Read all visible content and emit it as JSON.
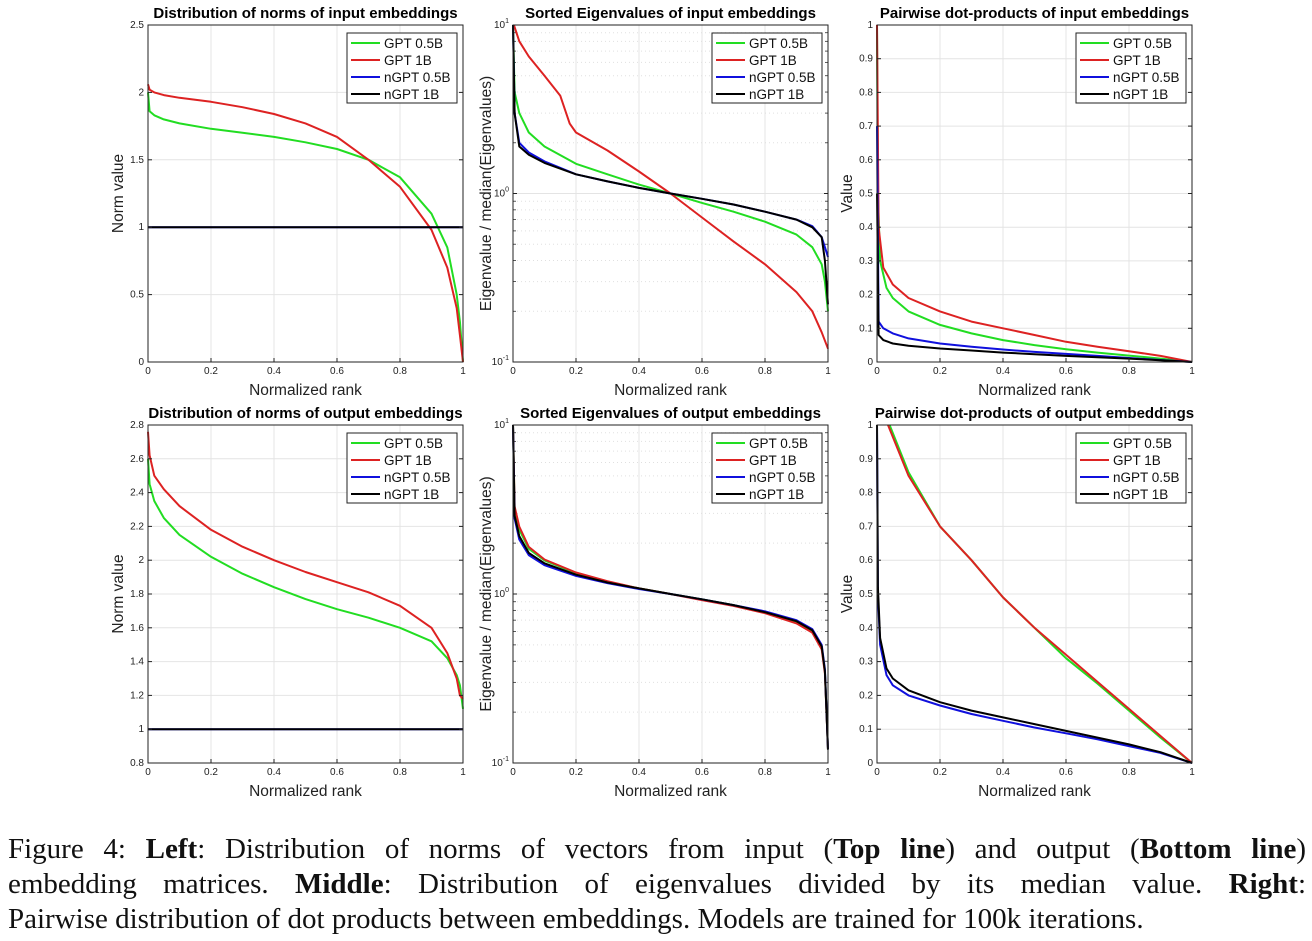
{
  "colors": {
    "GPT 0.5B": "#22dd22",
    "GPT 1B": "#dd2222",
    "nGPT 0.5B": "#1010dd",
    "nGPT 1B": "#000000",
    "grid": "#e4e4e4"
  },
  "chart_data": [
    {
      "type": "line",
      "title": "Distribution of norms of input embeddings",
      "xlabel": "Normalized rank",
      "ylabel": "Norm value",
      "xlim": [
        0,
        1
      ],
      "ylim": [
        0,
        2.5
      ],
      "yscale": "linear",
      "grid": true,
      "legend": "top-right",
      "xticks": [
        0,
        0.2,
        0.4,
        0.6,
        0.8,
        1
      ],
      "xticklabels": [
        "0",
        "0.2",
        "0.4",
        "0.6",
        "0.8",
        "1"
      ],
      "yticks": [
        0,
        0.5,
        1,
        1.5,
        2,
        2.5
      ],
      "yticklabels": [
        "0",
        "0.5",
        "1",
        "1.5",
        "2",
        "2.5"
      ],
      "series": [
        {
          "name": "GPT 0.5B",
          "x": [
            0,
            0.005,
            0.02,
            0.05,
            0.1,
            0.2,
            0.3,
            0.4,
            0.5,
            0.6,
            0.7,
            0.8,
            0.9,
            0.95,
            0.98,
            0.99,
            1
          ],
          "y": [
            2.0,
            1.86,
            1.83,
            1.8,
            1.77,
            1.73,
            1.7,
            1.67,
            1.63,
            1.58,
            1.5,
            1.37,
            1.1,
            0.85,
            0.5,
            0.3,
            0
          ]
        },
        {
          "name": "GPT 1B",
          "x": [
            0,
            0.005,
            0.02,
            0.05,
            0.1,
            0.2,
            0.3,
            0.4,
            0.5,
            0.6,
            0.7,
            0.8,
            0.9,
            0.95,
            0.98,
            0.99,
            1
          ],
          "y": [
            2.06,
            2.02,
            2.0,
            1.98,
            1.96,
            1.93,
            1.89,
            1.84,
            1.77,
            1.67,
            1.5,
            1.3,
            0.98,
            0.7,
            0.4,
            0.2,
            0
          ]
        },
        {
          "name": "nGPT 0.5B",
          "x": [
            0,
            1
          ],
          "y": [
            1,
            1
          ]
        },
        {
          "name": "nGPT 1B",
          "x": [
            0,
            1
          ],
          "y": [
            1,
            1
          ]
        }
      ]
    },
    {
      "type": "line",
      "title": "Sorted Eigenvalues of input embeddings",
      "xlabel": "Normalized rank",
      "ylabel": "Eigenvalue / median(Eigenvalues)",
      "xlim": [
        0,
        1
      ],
      "ylim": [
        0.1,
        10
      ],
      "yscale": "log",
      "grid": true,
      "legend": "top-right",
      "xticks": [
        0,
        0.2,
        0.4,
        0.6,
        0.8,
        1
      ],
      "xticklabels": [
        "0",
        "0.2",
        "0.4",
        "0.6",
        "0.8",
        "1"
      ],
      "yticks": [
        0.1,
        1,
        10
      ],
      "yticklabels": [
        "10^-1",
        "10^0",
        "10^1"
      ],
      "series": [
        {
          "name": "GPT 0.5B",
          "x": [
            0,
            0.005,
            0.02,
            0.05,
            0.1,
            0.2,
            0.3,
            0.4,
            0.5,
            0.6,
            0.7,
            0.8,
            0.9,
            0.95,
            0.98,
            0.99,
            1
          ],
          "y": [
            10,
            4,
            3,
            2.3,
            1.9,
            1.5,
            1.3,
            1.13,
            1.0,
            0.88,
            0.78,
            0.68,
            0.57,
            0.48,
            0.38,
            0.3,
            0.2
          ]
        },
        {
          "name": "GPT 1B",
          "x": [
            0.003,
            0.02,
            0.05,
            0.1,
            0.15,
            0.18,
            0.2,
            0.3,
            0.4,
            0.5,
            0.6,
            0.7,
            0.8,
            0.9,
            0.95,
            0.98,
            1
          ],
          "y": [
            10,
            8,
            6.5,
            5,
            3.8,
            2.6,
            2.3,
            1.8,
            1.35,
            1.0,
            0.72,
            0.52,
            0.38,
            0.26,
            0.2,
            0.15,
            0.12
          ]
        },
        {
          "name": "nGPT 0.5B",
          "x": [
            0,
            0.005,
            0.02,
            0.05,
            0.1,
            0.2,
            0.3,
            0.4,
            0.5,
            0.6,
            0.7,
            0.8,
            0.9,
            0.95,
            0.98,
            0.99,
            1
          ],
          "y": [
            10,
            3,
            2,
            1.75,
            1.55,
            1.3,
            1.18,
            1.08,
            1.0,
            0.93,
            0.86,
            0.78,
            0.7,
            0.64,
            0.55,
            0.48,
            0.42
          ]
        },
        {
          "name": "nGPT 1B",
          "x": [
            0,
            0.005,
            0.02,
            0.05,
            0.1,
            0.2,
            0.3,
            0.4,
            0.5,
            0.6,
            0.7,
            0.8,
            0.9,
            0.95,
            0.98,
            0.99,
            1
          ],
          "y": [
            10,
            3,
            1.9,
            1.7,
            1.52,
            1.3,
            1.18,
            1.08,
            1.0,
            0.93,
            0.86,
            0.78,
            0.7,
            0.63,
            0.55,
            0.4,
            0.22
          ]
        }
      ]
    },
    {
      "type": "line",
      "title": "Pairwise dot-products of input embeddings",
      "xlabel": "Normalized rank",
      "ylabel": "Value",
      "xlim": [
        0,
        1
      ],
      "ylim": [
        0,
        1
      ],
      "yscale": "linear",
      "grid": true,
      "legend": "top-right",
      "xticks": [
        0,
        0.2,
        0.4,
        0.6,
        0.8,
        1
      ],
      "xticklabels": [
        "0",
        "0.2",
        "0.4",
        "0.6",
        "0.8",
        "1"
      ],
      "yticks": [
        0,
        0.1,
        0.2,
        0.3,
        0.4,
        0.5,
        0.6,
        0.7,
        0.8,
        0.9,
        1
      ],
      "yticklabels": [
        "0",
        "0.1",
        "0.2",
        "0.3",
        "0.4",
        "0.5",
        "0.6",
        "0.7",
        "0.8",
        "0.9",
        "1"
      ],
      "series": [
        {
          "name": "GPT 0.5B",
          "x": [
            0,
            0.003,
            0.01,
            0.03,
            0.05,
            0.1,
            0.2,
            0.3,
            0.4,
            0.5,
            0.6,
            0.7,
            0.8,
            0.9,
            1
          ],
          "y": [
            1,
            0.5,
            0.3,
            0.22,
            0.19,
            0.15,
            0.11,
            0.085,
            0.065,
            0.05,
            0.038,
            0.028,
            0.019,
            0.01,
            0
          ]
        },
        {
          "name": "GPT 1B",
          "x": [
            0,
            0.005,
            0.02,
            0.05,
            0.1,
            0.2,
            0.3,
            0.4,
            0.5,
            0.6,
            0.7,
            0.8,
            0.9,
            1
          ],
          "y": [
            1,
            0.4,
            0.28,
            0.23,
            0.19,
            0.15,
            0.12,
            0.1,
            0.08,
            0.06,
            0.045,
            0.032,
            0.018,
            0
          ]
        },
        {
          "name": "nGPT 0.5B",
          "x": [
            0,
            0.005,
            0.02,
            0.05,
            0.1,
            0.2,
            0.3,
            0.4,
            0.5,
            0.6,
            0.7,
            0.8,
            0.9,
            1
          ],
          "y": [
            0.7,
            0.12,
            0.1,
            0.085,
            0.07,
            0.055,
            0.045,
            0.037,
            0.03,
            0.024,
            0.018,
            0.012,
            0.006,
            0
          ]
        },
        {
          "name": "nGPT 1B",
          "x": [
            0,
            0.005,
            0.02,
            0.05,
            0.1,
            0.2,
            0.3,
            0.4,
            0.5,
            0.6,
            0.7,
            0.8,
            0.9,
            1
          ],
          "y": [
            0.5,
            0.08,
            0.065,
            0.055,
            0.048,
            0.04,
            0.034,
            0.028,
            0.023,
            0.018,
            0.014,
            0.01,
            0.005,
            0
          ]
        }
      ]
    },
    {
      "type": "line",
      "title": "Distribution of norms of output embeddings",
      "xlabel": "Normalized rank",
      "ylabel": "Norm value",
      "xlim": [
        0,
        1
      ],
      "ylim": [
        0.8,
        2.8
      ],
      "yscale": "linear",
      "grid": true,
      "legend": "top-right",
      "xticks": [
        0,
        0.2,
        0.4,
        0.6,
        0.8,
        1
      ],
      "xticklabels": [
        "0",
        "0.2",
        "0.4",
        "0.6",
        "0.8",
        "1"
      ],
      "yticks": [
        0.8,
        1,
        1.2,
        1.4,
        1.6,
        1.8,
        2,
        2.2,
        2.4,
        2.6,
        2.8
      ],
      "yticklabels": [
        "0.8",
        "1",
        "1.2",
        "1.4",
        "1.6",
        "1.8",
        "2",
        "2.2",
        "2.4",
        "2.6",
        "2.8"
      ],
      "series": [
        {
          "name": "GPT 0.5B",
          "x": [
            0,
            0.005,
            0.02,
            0.05,
            0.1,
            0.2,
            0.3,
            0.4,
            0.5,
            0.6,
            0.7,
            0.8,
            0.9,
            0.95,
            0.98,
            0.99,
            1
          ],
          "y": [
            2.6,
            2.45,
            2.35,
            2.25,
            2.15,
            2.02,
            1.92,
            1.84,
            1.77,
            1.71,
            1.66,
            1.6,
            1.52,
            1.42,
            1.32,
            1.26,
            1.12
          ]
        },
        {
          "name": "GPT 1B",
          "x": [
            0,
            0.005,
            0.02,
            0.05,
            0.1,
            0.2,
            0.3,
            0.4,
            0.5,
            0.6,
            0.7,
            0.8,
            0.9,
            0.95,
            0.98,
            0.99,
            1
          ],
          "y": [
            2.76,
            2.62,
            2.5,
            2.42,
            2.32,
            2.18,
            2.08,
            2.0,
            1.93,
            1.87,
            1.81,
            1.73,
            1.6,
            1.45,
            1.3,
            1.2,
            1.18
          ]
        },
        {
          "name": "nGPT 0.5B",
          "x": [
            0,
            1
          ],
          "y": [
            1,
            1
          ]
        },
        {
          "name": "nGPT 1B",
          "x": [
            0,
            1
          ],
          "y": [
            1,
            1
          ]
        }
      ]
    },
    {
      "type": "line",
      "title": "Sorted Eigenvalues of output embeddings",
      "xlabel": "Normalized rank",
      "ylabel": "Eigenvalue / median(Eigenvalues)",
      "xlim": [
        0,
        1
      ],
      "ylim": [
        0.1,
        10
      ],
      "yscale": "log",
      "grid": true,
      "legend": "top-right",
      "xticks": [
        0,
        0.2,
        0.4,
        0.6,
        0.8,
        1
      ],
      "xticklabels": [
        "0",
        "0.2",
        "0.4",
        "0.6",
        "0.8",
        "1"
      ],
      "yticks": [
        0.1,
        1,
        10
      ],
      "yticklabels": [
        "10^-1",
        "10^0",
        "10^1"
      ],
      "series": [
        {
          "name": "GPT 0.5B",
          "x": [
            0,
            0.005,
            0.02,
            0.05,
            0.1,
            0.2,
            0.3,
            0.4,
            0.5,
            0.6,
            0.7,
            0.8,
            0.9,
            0.95,
            0.98,
            0.99,
            1
          ],
          "y": [
            10,
            3.2,
            2.4,
            1.85,
            1.58,
            1.33,
            1.18,
            1.08,
            1.0,
            0.93,
            0.86,
            0.78,
            0.68,
            0.6,
            0.48,
            0.35,
            0.12
          ]
        },
        {
          "name": "GPT 1B",
          "x": [
            0,
            0.005,
            0.02,
            0.05,
            0.1,
            0.2,
            0.3,
            0.4,
            0.5,
            0.6,
            0.7,
            0.8,
            0.9,
            0.95,
            0.98,
            0.99,
            1
          ],
          "y": [
            10,
            3.3,
            2.5,
            1.9,
            1.6,
            1.34,
            1.19,
            1.08,
            1.0,
            0.92,
            0.85,
            0.77,
            0.67,
            0.59,
            0.47,
            0.34,
            0.12
          ]
        },
        {
          "name": "nGPT 0.5B",
          "x": [
            0,
            0.005,
            0.02,
            0.05,
            0.1,
            0.2,
            0.3,
            0.4,
            0.5,
            0.6,
            0.7,
            0.8,
            0.9,
            0.95,
            0.98,
            0.99,
            1
          ],
          "y": [
            10,
            2.8,
            2.1,
            1.7,
            1.48,
            1.28,
            1.16,
            1.07,
            1.0,
            0.93,
            0.86,
            0.79,
            0.7,
            0.62,
            0.5,
            0.36,
            0.12
          ]
        },
        {
          "name": "nGPT 1B",
          "x": [
            0,
            0.005,
            0.02,
            0.05,
            0.1,
            0.2,
            0.3,
            0.4,
            0.5,
            0.6,
            0.7,
            0.8,
            0.9,
            0.95,
            0.98,
            0.99,
            1
          ],
          "y": [
            10,
            2.9,
            2.2,
            1.75,
            1.52,
            1.3,
            1.17,
            1.08,
            1.0,
            0.93,
            0.86,
            0.78,
            0.69,
            0.61,
            0.49,
            0.35,
            0.12
          ]
        }
      ]
    },
    {
      "type": "line",
      "title": "Pairwise dot-products of output embeddings",
      "xlabel": "Normalized rank",
      "ylabel": "Value",
      "xlim": [
        0,
        1
      ],
      "ylim": [
        0,
        1
      ],
      "yscale": "linear",
      "grid": true,
      "legend": "top-right",
      "xticks": [
        0,
        0.2,
        0.4,
        0.6,
        0.8,
        1
      ],
      "xticklabels": [
        "0",
        "0.2",
        "0.4",
        "0.6",
        "0.8",
        "1"
      ],
      "yticks": [
        0,
        0.1,
        0.2,
        0.3,
        0.4,
        0.5,
        0.6,
        0.7,
        0.8,
        0.9,
        1
      ],
      "yticklabels": [
        "0",
        "0.1",
        "0.2",
        "0.3",
        "0.4",
        "0.5",
        "0.6",
        "0.7",
        "0.8",
        "0.9",
        "1"
      ],
      "series": [
        {
          "name": "GPT 0.5B",
          "x": [
            0.04,
            0.1,
            0.2,
            0.3,
            0.4,
            0.5,
            0.6,
            0.7,
            0.8,
            0.9,
            1
          ],
          "y": [
            1.0,
            0.86,
            0.7,
            0.6,
            0.49,
            0.4,
            0.31,
            0.235,
            0.155,
            0.075,
            0
          ]
        },
        {
          "name": "GPT 1B",
          "x": [
            0.035,
            0.1,
            0.2,
            0.3,
            0.4,
            0.5,
            0.6,
            0.7,
            0.8,
            0.9,
            1
          ],
          "y": [
            1.0,
            0.85,
            0.7,
            0.6,
            0.49,
            0.4,
            0.32,
            0.24,
            0.16,
            0.08,
            0
          ]
        },
        {
          "name": "nGPT 0.5B",
          "x": [
            0,
            0.003,
            0.01,
            0.03,
            0.05,
            0.1,
            0.2,
            0.3,
            0.4,
            0.5,
            0.6,
            0.7,
            0.8,
            0.9,
            1
          ],
          "y": [
            1,
            0.5,
            0.35,
            0.26,
            0.23,
            0.2,
            0.17,
            0.145,
            0.125,
            0.105,
            0.088,
            0.07,
            0.05,
            0.03,
            0
          ]
        },
        {
          "name": "nGPT 1B",
          "x": [
            0,
            0.003,
            0.01,
            0.03,
            0.05,
            0.1,
            0.2,
            0.3,
            0.4,
            0.5,
            0.6,
            0.7,
            0.8,
            0.9,
            1
          ],
          "y": [
            1,
            0.52,
            0.37,
            0.28,
            0.25,
            0.215,
            0.18,
            0.155,
            0.135,
            0.115,
            0.095,
            0.075,
            0.055,
            0.032,
            0
          ]
        }
      ]
    }
  ],
  "caption": {
    "lines": [
      [
        {
          "t": "Figure 4:  "
        },
        {
          "t": "Left",
          "b": true
        },
        {
          "t": ": Distribution of norms of vectors from input ("
        },
        {
          "t": "Top line",
          "b": true
        },
        {
          "t": ") and output ("
        },
        {
          "t": "Bottom line",
          "b": true
        },
        {
          "t": ")"
        }
      ],
      [
        {
          "t": "embedding matrices.  "
        },
        {
          "t": "Middle",
          "b": true
        },
        {
          "t": ":  Distribution of eigenvalues divided by its median value.  "
        },
        {
          "t": "Right",
          "b": true
        },
        {
          "t": ":"
        }
      ],
      [
        {
          "t": "Pairwise distribution of dot products between embeddings. Models are trained for 100k iterations."
        }
      ]
    ]
  }
}
